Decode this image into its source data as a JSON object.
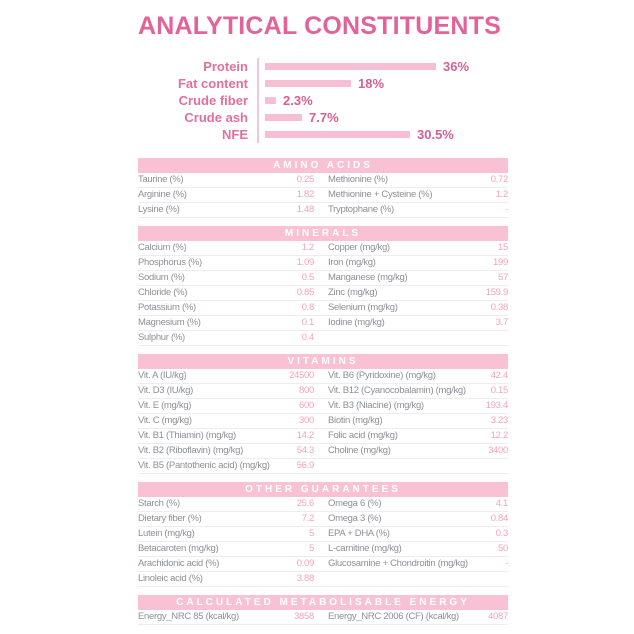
{
  "title": "ANALYTICAL CONSTITUENTS",
  "colors": {
    "title_pink": "#e2639a",
    "chart_label_pink": "#e2709f",
    "chart_value_pink": "#d85f93",
    "bar_fill": "#f7bfd3",
    "chart_divider": "#f4c6d7",
    "band_bg": "#f8c1d4",
    "band_text": "#ffffff",
    "label_grey": "#8b9197",
    "value_pink": "#f0a3c0",
    "row_border": "#ededef"
  },
  "chart_data": {
    "type": "bar",
    "orientation": "horizontal",
    "title": "ANALYTICAL CONSTITUENTS",
    "categories": [
      "Protein",
      "Fat content",
      "Crude fiber",
      "Crude ash",
      "NFE"
    ],
    "values": [
      36,
      18,
      2.3,
      7.7,
      30.5
    ],
    "value_labels": [
      "36%",
      "18%",
      "2.3%",
      "7.7%",
      "30.5%"
    ],
    "xlim": [
      0,
      36
    ],
    "grid": false,
    "legend": false
  },
  "sections": [
    {
      "title": "AMINO ACIDS",
      "rows": [
        [
          "Taurine (%)",
          "0.25",
          "Methionine (%)",
          "0.72"
        ],
        [
          "Arginine (%)",
          "1.82",
          "Methionine + Cysteine (%)",
          "1.2"
        ],
        [
          "Lysine (%)",
          "1.48",
          "Tryptophane (%)",
          "-"
        ]
      ]
    },
    {
      "title": "MINERALS",
      "rows": [
        [
          "Calcium (%)",
          "1.2",
          "Copper (mg/kg)",
          "15"
        ],
        [
          "Phosphorus (%)",
          "1.09",
          "Iron (mg/kg)",
          "199"
        ],
        [
          "Sodium (%)",
          "0.5",
          "Manganese (mg/kg)",
          "57"
        ],
        [
          "Chloride (%)",
          "0.85",
          "Zinc (mg/kg)",
          "159.9"
        ],
        [
          "Potassium (%)",
          "0.8",
          "Selenium (mg/kg)",
          "0.38"
        ],
        [
          "Magnesium (%)",
          "0.1",
          "Iodine (mg/kg)",
          "3.7"
        ],
        [
          "Sulphur (%)",
          "0.4",
          "",
          ""
        ]
      ]
    },
    {
      "title": "VITAMINS",
      "rows": [
        [
          "Vit. A (IU/kg)",
          "24500",
          "Vit. B6 (Pyridoxine) (mg/kg)",
          "42.4"
        ],
        [
          "Vit. D3 (IU/kg)",
          "800",
          "Vit. B12 (Cyanocobalamin) (mg/kg)",
          "0.15"
        ],
        [
          "Vit. E (mg/kg)",
          "600",
          "Vit. B3 (Niacine) (mg/kg)",
          "193.4"
        ],
        [
          "Vit. C (mg/kg)",
          "300",
          "Biotin (mg/kg)",
          "3.23"
        ],
        [
          "Vit. B1 (Thiamin) (mg/kg)",
          "14.2",
          "Folic acid (mg/kg)",
          "12.2"
        ],
        [
          "Vit. B2 (Riboflavin) (mg/kg)",
          "54.3",
          "Choline (mg/kg)",
          "3400"
        ],
        [
          "Vit. B5 (Pantothenic acid) (mg/kg)",
          "56.9",
          "",
          ""
        ]
      ]
    },
    {
      "title": "OTHER GUARANTEES",
      "rows": [
        [
          "Starch (%)",
          "25.6",
          "Omega 6 (%)",
          "4.1"
        ],
        [
          "Dietary fiber (%)",
          "7.2",
          "Omega 3 (%)",
          "0.84"
        ],
        [
          "Lutein (mg/kg)",
          "5",
          "EPA + DHA (%)",
          "0.3"
        ],
        [
          "Betacaroten (mg/kg)",
          "5",
          "L-carnitine (mg/kg)",
          "50"
        ],
        [
          "Arachidonic acid (%)",
          "0.09",
          "Glucosamine + Chondroitin (mg/kg)",
          "-"
        ],
        [
          "Linoleic acid (%)",
          "3.88",
          "",
          ""
        ]
      ]
    },
    {
      "title": "CALCULATED METABOLISABLE ENERGY",
      "rows": [
        [
          "Energy_NRC 85 (kcal/kg)",
          "3858",
          "Energy_NRC 2006 (CF) (kcal/kg)",
          "4087"
        ]
      ]
    }
  ]
}
